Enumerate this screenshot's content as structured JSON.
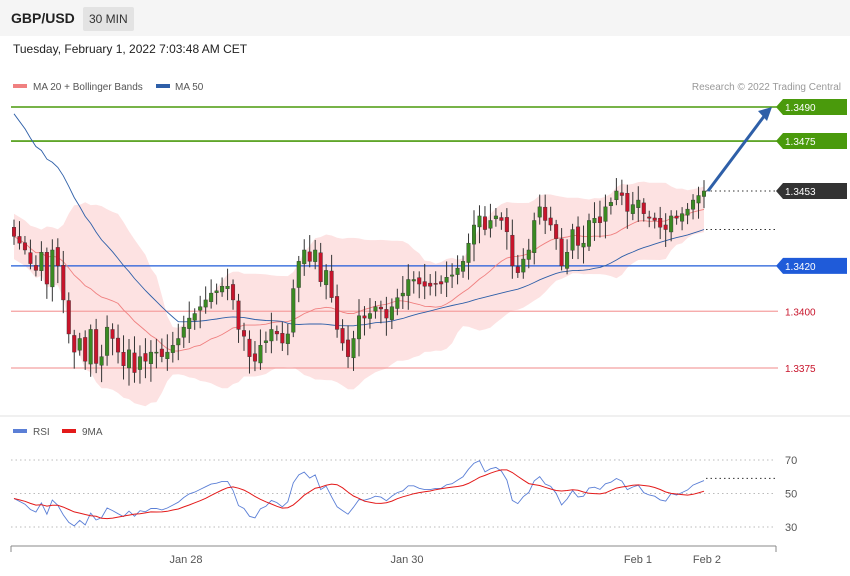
{
  "header": {
    "symbol": "GBP/USD",
    "interval": "30 MIN",
    "datetime": "Tuesday, February 1, 2022 7:03:48 AM CET"
  },
  "legend": {
    "ma20_label": "MA 20 + Bollinger Bands",
    "ma50_label": "MA 50",
    "ma20_color": "#f08080",
    "ma50_color": "#2e5fa8",
    "credit": "Research © 2022 Trading Central"
  },
  "rsi_legend": {
    "rsi_label": "RSI",
    "ma9_label": "9MA",
    "rsi_color": "#5b7fd6",
    "ma9_color": "#e31a1a"
  },
  "colors": {
    "up": "#3a8a22",
    "down": "#c8142b",
    "band": "#fde2e2",
    "resistance": "#4a9a0c",
    "pivot": "#1f5bd9",
    "support": "#f4a0a0",
    "current": "#333333",
    "arrow": "#2e5fa8"
  },
  "chart_data": [
    {
      "type": "candlestick",
      "title": "GBP/USD 30 MIN",
      "ylim": [
        1.3355,
        1.35
      ],
      "x_ticks": [
        "Jan 28",
        "Jan 30",
        "Feb 1",
        "Feb 2"
      ],
      "levels": [
        {
          "value": 1.349,
          "label": "1.3490",
          "kind": "resistance"
        },
        {
          "value": 1.3475,
          "label": "1.3475",
          "kind": "resistance"
        },
        {
          "value": 1.3453,
          "label": "1.3453",
          "kind": "current"
        },
        {
          "value": 1.342,
          "label": "1.3420",
          "kind": "pivot"
        },
        {
          "value": 1.34,
          "label": "1.3400",
          "kind": "support"
        },
        {
          "value": 1.3375,
          "label": "1.3375",
          "kind": "support"
        }
      ],
      "projection_from": 1.3453,
      "projection_to": 1.349,
      "closes": [
        1.3433,
        1.343,
        1.3427,
        1.3421,
        1.3418,
        1.3426,
        1.3412,
        1.3427,
        1.342,
        1.3405,
        1.339,
        1.3382,
        1.3388,
        1.3378,
        1.3392,
        1.3377,
        1.338,
        1.3393,
        1.3388,
        1.3382,
        1.3376,
        1.3383,
        1.3373,
        1.338,
        1.3378,
        1.3382,
        1.3382,
        1.338,
        1.3382,
        1.3385,
        1.3388,
        1.3393,
        1.3397,
        1.3399,
        1.3402,
        1.3405,
        1.3408,
        1.3409,
        1.3411,
        1.3411,
        1.3405,
        1.3392,
        1.3389,
        1.338,
        1.3378,
        1.3385,
        1.3387,
        1.3392,
        1.339,
        1.3386,
        1.339,
        1.341,
        1.3422,
        1.3427,
        1.3422,
        1.3427,
        1.3413,
        1.3418,
        1.3406,
        1.3392,
        1.3386,
        1.338,
        1.3388,
        1.3398,
        1.3397,
        1.3399,
        1.3402,
        1.3401,
        1.3397,
        1.3402,
        1.3406,
        1.3408,
        1.3414,
        1.3414,
        1.3412,
        1.3411,
        1.3411,
        1.3412,
        1.3412,
        1.3415,
        1.3416,
        1.3419,
        1.3422,
        1.343,
        1.3438,
        1.3442,
        1.3436,
        1.344,
        1.3442,
        1.344,
        1.3435,
        1.342,
        1.3417,
        1.3423,
        1.3427,
        1.344,
        1.3446,
        1.344,
        1.3438,
        1.3432,
        1.342,
        1.3426,
        1.3436,
        1.3429,
        1.343,
        1.344,
        1.3441,
        1.3439,
        1.3446,
        1.3448,
        1.3453,
        1.3451,
        1.3444,
        1.3447,
        1.3449,
        1.3443,
        1.3441,
        1.344,
        1.3437,
        1.3436,
        1.3442,
        1.3441,
        1.3443,
        1.3445,
        1.3449,
        1.3451,
        1.3453
      ]
    },
    {
      "type": "line",
      "title": "RSI",
      "ylim": [
        20,
        80
      ],
      "y_ticks": [
        30,
        50,
        70
      ]
    }
  ]
}
